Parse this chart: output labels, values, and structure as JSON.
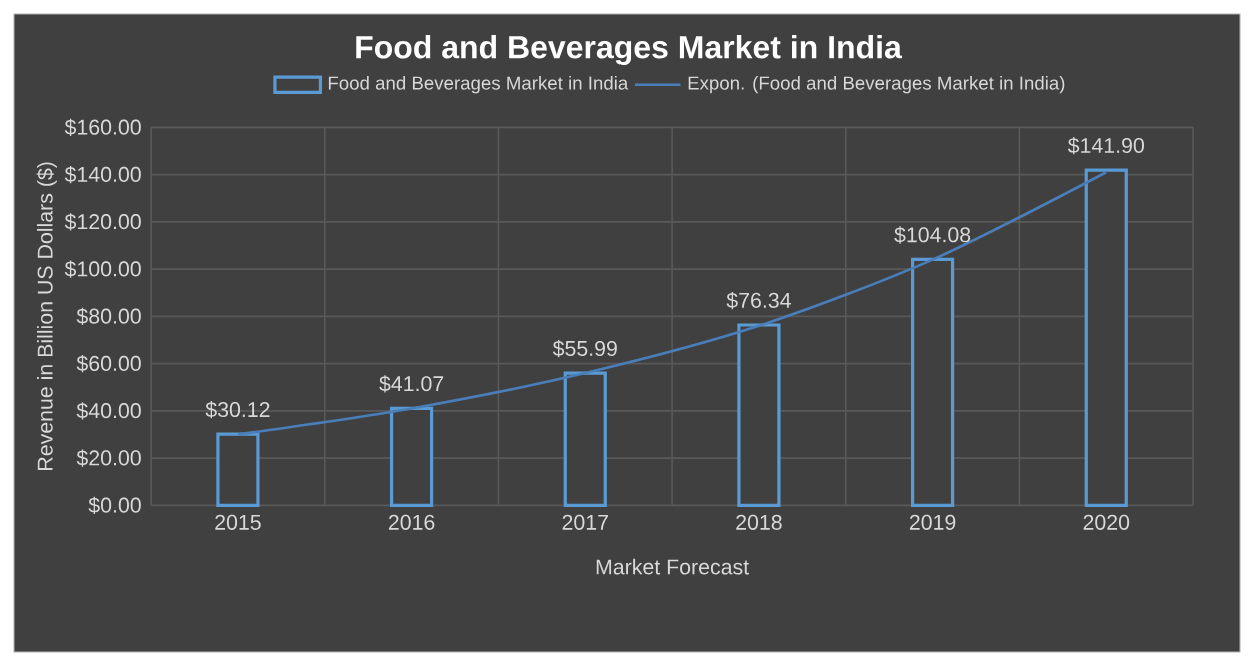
{
  "chart_data": {
    "type": "bar",
    "title": "Food and Beverages Market in India",
    "xlabel": "Market Forecast",
    "ylabel": "Revenue in Billion US Dollars ($)",
    "categories": [
      "2015",
      "2016",
      "2017",
      "2018",
      "2019",
      "2020"
    ],
    "series": [
      {
        "name": "Food and Beverages Market in India",
        "color": "#5b9bd5",
        "values": [
          30.12,
          41.07,
          55.99,
          76.34,
          104.08,
          141.9
        ],
        "value_labels": [
          "$30.12",
          "$41.07",
          "$55.99",
          "$76.34",
          "$104.08",
          "$141.90"
        ]
      },
      {
        "name": "Expon.  (Food and Beverages Market in India)",
        "type": "line",
        "color": "#4a7ebb",
        "values": [
          30,
          41,
          56,
          76,
          104,
          141
        ]
      }
    ],
    "ylim": [
      0,
      160
    ],
    "yticks": [
      {
        "value": 0,
        "label": "$0.00"
      },
      {
        "value": 20,
        "label": "$20.00"
      },
      {
        "value": 40,
        "label": "$40.00"
      },
      {
        "value": 60,
        "label": "$60.00"
      },
      {
        "value": 80,
        "label": "$80.00"
      },
      {
        "value": 100,
        "label": "$100.00"
      },
      {
        "value": 120,
        "label": "$120.00"
      },
      {
        "value": 140,
        "label": "$140.00"
      },
      {
        "value": 160,
        "label": "$160.00"
      }
    ],
    "grid": true,
    "legend": "top"
  }
}
